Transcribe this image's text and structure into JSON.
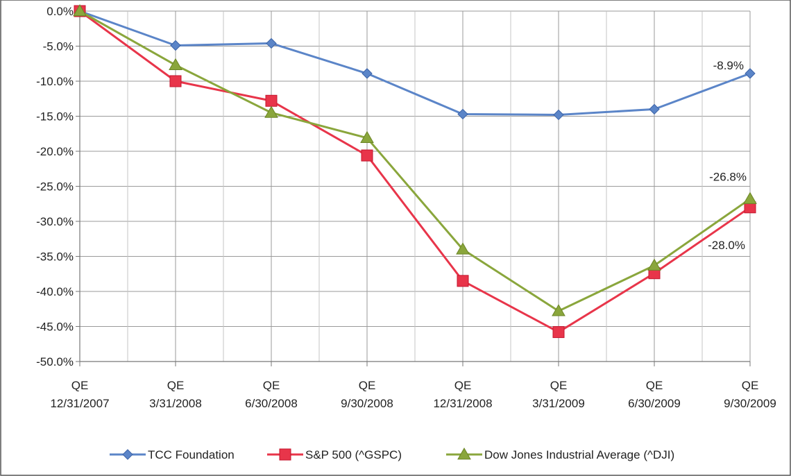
{
  "chart_data": {
    "type": "line",
    "categories": [
      "QE 12/31/2007",
      "QE 3/31/2008",
      "QE 6/30/2008",
      "QE 9/30/2008",
      "QE 12/31/2008",
      "QE 3/31/2009",
      "QE 6/30/2009",
      "QE 9/30/2009"
    ],
    "category_lines": [
      [
        "QE",
        "12/31/2007"
      ],
      [
        "QE",
        "3/31/2008"
      ],
      [
        "QE",
        "6/30/2008"
      ],
      [
        "QE",
        "9/30/2008"
      ],
      [
        "QE",
        "12/31/2008"
      ],
      [
        "QE",
        "3/31/2009"
      ],
      [
        "QE",
        "6/30/2009"
      ],
      [
        "QE",
        "9/30/2009"
      ]
    ],
    "series": [
      {
        "name": "TCC Foundation",
        "color": "#5b85c8",
        "marker": "diamond",
        "values": [
          0.0,
          -4.9,
          -4.6,
          -8.9,
          -14.7,
          -14.8,
          -14.0,
          -8.9
        ]
      },
      {
        "name": "S&P 500 (^GSPC)",
        "color": "#e8354a",
        "marker": "square",
        "values": [
          0.0,
          -10.0,
          -12.8,
          -20.6,
          -38.5,
          -45.8,
          -37.4,
          -28.0
        ]
      },
      {
        "name": "Dow Jones Industrial Average (^DJI)",
        "color": "#8aa63c",
        "marker": "triangle",
        "values": [
          0.0,
          -7.7,
          -14.5,
          -18.1,
          -34.0,
          -42.8,
          -36.3,
          -26.8
        ]
      }
    ],
    "data_labels": [
      {
        "series": 0,
        "index": 7,
        "text": "-8.9%"
      },
      {
        "series": 2,
        "index": 7,
        "text": "-26.8%"
      },
      {
        "series": 1,
        "index": 7,
        "text": "-28.0%"
      }
    ],
    "ylim": [
      -50,
      0
    ],
    "y_ticks": [
      0,
      -5,
      -10,
      -15,
      -20,
      -25,
      -30,
      -35,
      -40,
      -45,
      -50
    ],
    "y_tick_labels": [
      "0.0%",
      "-5.0%",
      "-10.0%",
      "-15.0%",
      "-20.0%",
      "-25.0%",
      "-30.0%",
      "-35.0%",
      "-40.0%",
      "-45.0%",
      "-50.0%"
    ],
    "grid": true,
    "legend_position": "bottom",
    "title": "",
    "xlabel": "",
    "ylabel": ""
  }
}
